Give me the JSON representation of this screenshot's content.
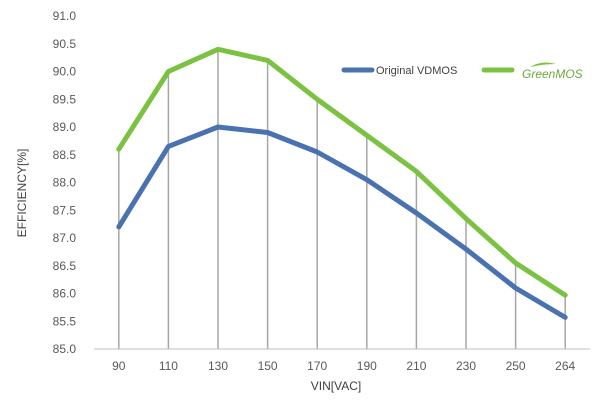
{
  "chart_data": {
    "type": "line",
    "title": "",
    "xlabel": "VIN[VAC]",
    "ylabel": "EFFICIENCY[%]",
    "categories": [
      "90",
      "110",
      "130",
      "150",
      "170",
      "190",
      "210",
      "230",
      "250",
      "264"
    ],
    "ylim": [
      85.0,
      91.0
    ],
    "yticks": [
      "85.0",
      "85.5",
      "86.0",
      "86.5",
      "87.0",
      "87.5",
      "88.0",
      "88.5",
      "89.0",
      "89.5",
      "90.0",
      "90.5",
      "91.0"
    ],
    "grid": "vertical drop lines",
    "legend": "top-right",
    "series": [
      {
        "name": "Original VDMOS",
        "color": "#4a72b0",
        "values": [
          87.2,
          88.65,
          89.0,
          88.9,
          88.55,
          88.05,
          87.45,
          86.8,
          86.1,
          85.57
        ]
      },
      {
        "name": "GreenMOS",
        "color": "#7cc242",
        "values": [
          88.6,
          90.0,
          90.4,
          90.2,
          89.5,
          88.85,
          88.2,
          87.35,
          86.55,
          85.97
        ]
      }
    ]
  }
}
